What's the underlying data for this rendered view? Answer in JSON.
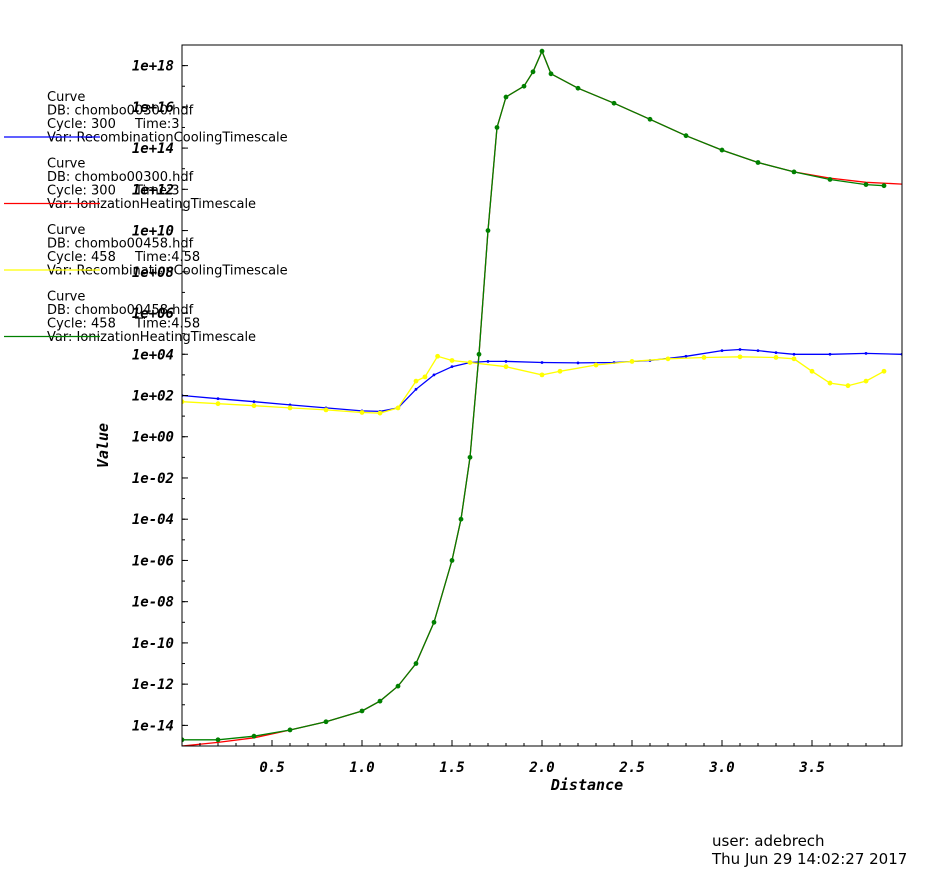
{
  "chart_data": {
    "type": "line",
    "xlabel": "Distance",
    "ylabel": "Value",
    "yscale": "log",
    "xlim": [
      0.0,
      4.0
    ],
    "ylim": [
      1e-15,
      1e+19
    ],
    "xticks": [
      "0.5",
      "1.0",
      "1.5",
      "2.0",
      "2.5",
      "3.0",
      "3.5"
    ],
    "yticks": [
      "1e+18",
      "1e+16",
      "1e+14",
      "1e+12",
      "1e+10",
      "1e+08",
      "1e+06",
      "1e+04",
      "1e+02",
      "1e+00",
      "1e-02",
      "1e-04",
      "1e-06",
      "1e-08",
      "1e-10",
      "1e-12",
      "1e-14"
    ],
    "grid": false,
    "legend_position": "left",
    "series": [
      {
        "legend": [
          "Curve",
          "DB: chombo00300.hdf",
          "Cycle: 300",
          "Time:3",
          "Var: RecombinationCoolingTimescale"
        ],
        "color": "#0000ff",
        "marker": "small",
        "x": [
          0.0,
          0.2,
          0.4,
          0.6,
          0.8,
          1.0,
          1.1,
          1.2,
          1.3,
          1.4,
          1.5,
          1.6,
          1.7,
          1.8,
          2.0,
          2.2,
          2.4,
          2.6,
          2.8,
          3.0,
          3.1,
          3.2,
          3.3,
          3.4,
          3.6,
          3.8,
          4.0
        ],
        "y": [
          100,
          70,
          50,
          35,
          25,
          18,
          17,
          25,
          200,
          1000,
          2500,
          4000,
          4500,
          4500,
          4000,
          3800,
          4000,
          5000,
          8000,
          15000,
          17000,
          15000,
          12000,
          10000,
          10000,
          11000,
          10000
        ]
      },
      {
        "legend": [
          "Curve",
          "DB: chombo00300.hdf",
          "Cycle: 300",
          "Time:3",
          "Var: IonizationHeatingTimescale"
        ],
        "color": "#ff0000",
        "marker": "none",
        "x": [
          0.0,
          0.2,
          0.4,
          0.6,
          0.8,
          1.0,
          1.1,
          1.2,
          1.3,
          1.4,
          1.5,
          1.55,
          1.6,
          1.65,
          1.7,
          1.75,
          1.8,
          1.9,
          1.95,
          2.0,
          2.05,
          2.2,
          2.4,
          2.6,
          2.8,
          3.0,
          3.2,
          3.4,
          3.6,
          3.8,
          4.0
        ],
        "y": [
          1e-15,
          1.5e-15,
          2.5e-15,
          6e-15,
          1.5e-14,
          5e-14,
          1.5e-13,
          8e-13,
          1e-11,
          1e-09,
          1e-06,
          0.0001,
          0.1,
          10000.0,
          10000000000.0,
          1000000000000000.0,
          3e+16,
          1e+17,
          5e+17,
          5e+18,
          4e+17,
          8e+16,
          1.5e+16,
          2500000000000000.0,
          400000000000000.0,
          80000000000000.0,
          20000000000000.0,
          7000000000000.0,
          3500000000000.0,
          2200000000000.0,
          1800000000000.0
        ]
      },
      {
        "legend": [
          "Curve",
          "DB: chombo00458.hdf",
          "Cycle: 458",
          "Time:4.58",
          "Var: RecombinationCoolingTimescale"
        ],
        "color": "#ffff00",
        "marker": "circle",
        "x": [
          0.0,
          0.2,
          0.4,
          0.6,
          0.8,
          1.0,
          1.1,
          1.2,
          1.3,
          1.35,
          1.42,
          1.5,
          1.6,
          1.8,
          2.0,
          2.1,
          2.3,
          2.5,
          2.7,
          2.9,
          3.1,
          3.3,
          3.4,
          3.5,
          3.6,
          3.7,
          3.8,
          3.9
        ],
        "y": [
          50,
          40,
          32,
          25,
          20,
          15,
          14,
          25,
          500,
          800,
          8000,
          5000,
          4000,
          2500,
          1000,
          1500,
          3000,
          4500,
          6000,
          7000,
          7500,
          7000,
          6000,
          1500,
          400,
          300,
          500,
          1500
        ]
      },
      {
        "legend": [
          "Curve",
          "DB: chombo00458.hdf",
          "Cycle: 458",
          "Time:4.58",
          "Var: IonizationHeatingTimescale"
        ],
        "color": "#008000",
        "marker": "circle",
        "x": [
          0.0,
          0.2,
          0.4,
          0.6,
          0.8,
          1.0,
          1.1,
          1.2,
          1.3,
          1.4,
          1.5,
          1.55,
          1.6,
          1.65,
          1.7,
          1.75,
          1.8,
          1.9,
          1.95,
          2.0,
          2.05,
          2.2,
          2.4,
          2.6,
          2.8,
          3.0,
          3.2,
          3.4,
          3.6,
          3.8,
          3.9
        ],
        "y": [
          2e-15,
          2e-15,
          3e-15,
          6e-15,
          1.5e-14,
          5e-14,
          1.5e-13,
          8e-13,
          1e-11,
          1e-09,
          1e-06,
          0.0001,
          0.1,
          10000.0,
          10000000000.0,
          1000000000000000.0,
          3e+16,
          1e+17,
          5e+17,
          5e+18,
          4e+17,
          8e+16,
          1.5e+16,
          2500000000000000.0,
          400000000000000.0,
          80000000000000.0,
          20000000000000.0,
          7000000000000.0,
          3000000000000.0,
          1700000000000.0,
          1500000000000.0
        ]
      }
    ]
  },
  "footer": {
    "user": "user: adebrech",
    "timestamp": "Thu Jun 29 14:02:27 2017"
  }
}
